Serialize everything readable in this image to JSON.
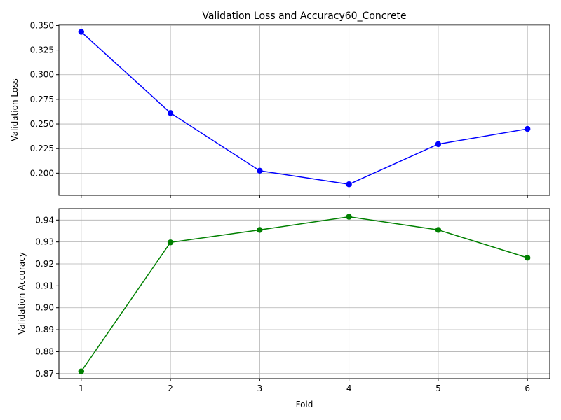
{
  "chart_data": [
    {
      "type": "line",
      "title": "Validation Loss and Accuracy60_Concrete",
      "xlabel": "",
      "ylabel": "Validation Loss",
      "x": [
        1,
        2,
        3,
        4,
        5,
        6
      ],
      "ylim": [
        0.1775,
        0.351
      ],
      "yticks": [
        "0.200",
        "0.225",
        "0.250",
        "0.275",
        "0.300",
        "0.325",
        "0.350"
      ],
      "ytick_values": [
        0.2,
        0.225,
        0.25,
        0.275,
        0.3,
        0.325,
        0.35
      ],
      "xticks": [
        1,
        2,
        3,
        4,
        5,
        6
      ],
      "show_xtick_labels": false,
      "grid": true,
      "color": "#0000ff",
      "marker": "circle",
      "series": [
        {
          "values": [
            0.3435,
            0.2612,
            0.2025,
            0.1887,
            0.2295,
            0.245
          ]
        }
      ]
    },
    {
      "type": "line",
      "title": "",
      "xlabel": "Fold",
      "ylabel": "Validation Accuracy",
      "x": [
        1,
        2,
        3,
        4,
        5,
        6
      ],
      "ylim": [
        0.8677,
        0.9452
      ],
      "yticks": [
        "0.87",
        "0.88",
        "0.89",
        "0.90",
        "0.91",
        "0.92",
        "0.93",
        "0.94"
      ],
      "ytick_values": [
        0.87,
        0.88,
        0.89,
        0.9,
        0.91,
        0.92,
        0.93,
        0.94
      ],
      "xticks": [
        "1",
        "2",
        "3",
        "4",
        "5",
        "6"
      ],
      "show_xtick_labels": true,
      "grid": true,
      "color": "#008000",
      "marker": "circle",
      "series": [
        {
          "values": [
            0.871,
            0.9298,
            0.9355,
            0.9415,
            0.9355,
            0.9228
          ]
        }
      ]
    }
  ]
}
